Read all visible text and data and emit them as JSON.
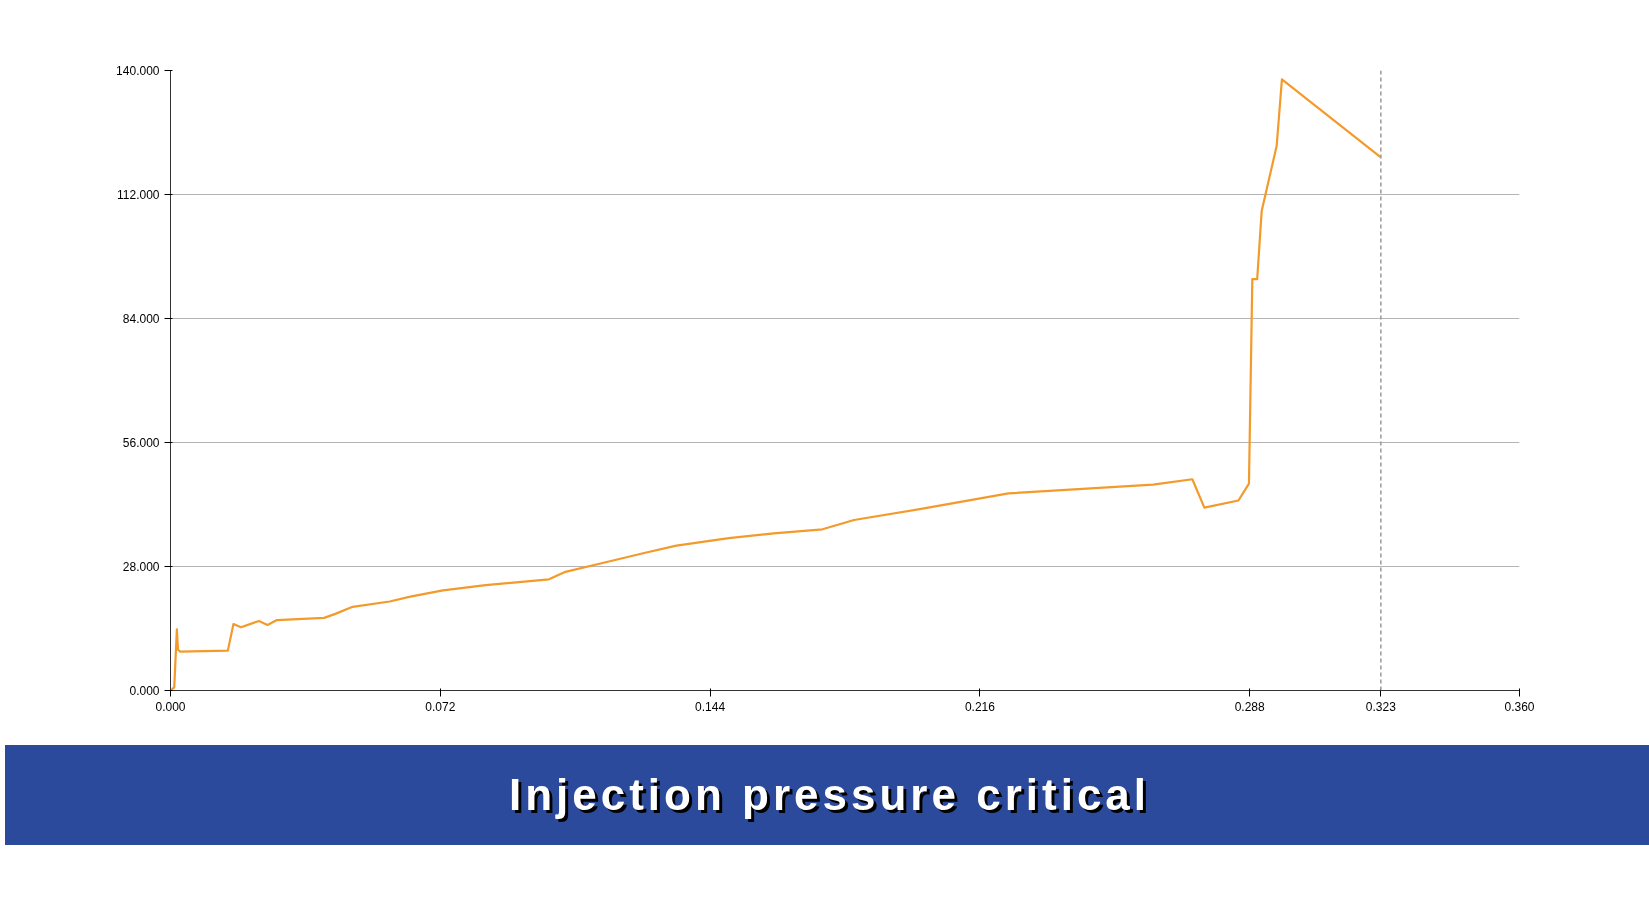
{
  "chart_data": {
    "type": "line",
    "x": [
      0,
      0.001,
      0.0017,
      0.002,
      0.0026,
      0.0153,
      0.0168,
      0.0188,
      0.0236,
      0.0259,
      0.0284,
      0.041,
      0.044,
      0.0486,
      0.0585,
      0.064,
      0.0727,
      0.0841,
      0.101,
      0.1054,
      0.1153,
      0.1267,
      0.135,
      0.149,
      0.161,
      0.174,
      0.1824,
      0.2003,
      0.2236,
      0.2622,
      0.2727,
      0.2759,
      0.285,
      0.2878,
      0.2887,
      0.29,
      0.2912,
      0.2952,
      0.2966,
      0.323
    ],
    "series": [
      {
        "color": "#f39a2b",
        "values": [
          0,
          0.7,
          13.8,
          9.2,
          8.8,
          9.0,
          15.0,
          14.3,
          15.7,
          14.8,
          15.9,
          16.4,
          17.3,
          18.9,
          20.1,
          21.2,
          22.6,
          23.8,
          25.1,
          26.8,
          28.8,
          31.1,
          32.7,
          34.4,
          35.5,
          36.4,
          38.5,
          41.0,
          44.5,
          46.5,
          47.7,
          41.3,
          42.9,
          46.7,
          92.9,
          92.9,
          108.3,
          123.0,
          138.0,
          120.4
        ]
      }
    ],
    "xlim": [
      0,
      0.36
    ],
    "xticks": [
      {
        "value": 0,
        "label": "0.000"
      },
      {
        "value": 0.072,
        "label": "0.072"
      },
      {
        "value": 0.144,
        "label": "0.144"
      },
      {
        "value": 0.216,
        "label": "0.216"
      },
      {
        "value": 0.288,
        "label": "0.288"
      },
      {
        "value": 0.36,
        "label": "0.360"
      }
    ],
    "ylim": [
      0,
      140
    ],
    "yticks": [
      {
        "value": 0,
        "label": "0.000"
      },
      {
        "value": 28,
        "label": "28.000"
      },
      {
        "value": 56,
        "label": "56.000"
      },
      {
        "value": 84,
        "label": "84.000"
      },
      {
        "value": 112,
        "label": "112.000"
      },
      {
        "value": 140,
        "label": "140.000"
      }
    ],
    "grid": "y",
    "marker": "none",
    "line_style": "solid",
    "ref_lines": [
      {
        "axis": "x",
        "value": 0.323,
        "label": "0.323",
        "color": "#999999",
        "line_style": "dashed"
      }
    ],
    "annotations": [
      "Injection pressure critical"
    ]
  }
}
